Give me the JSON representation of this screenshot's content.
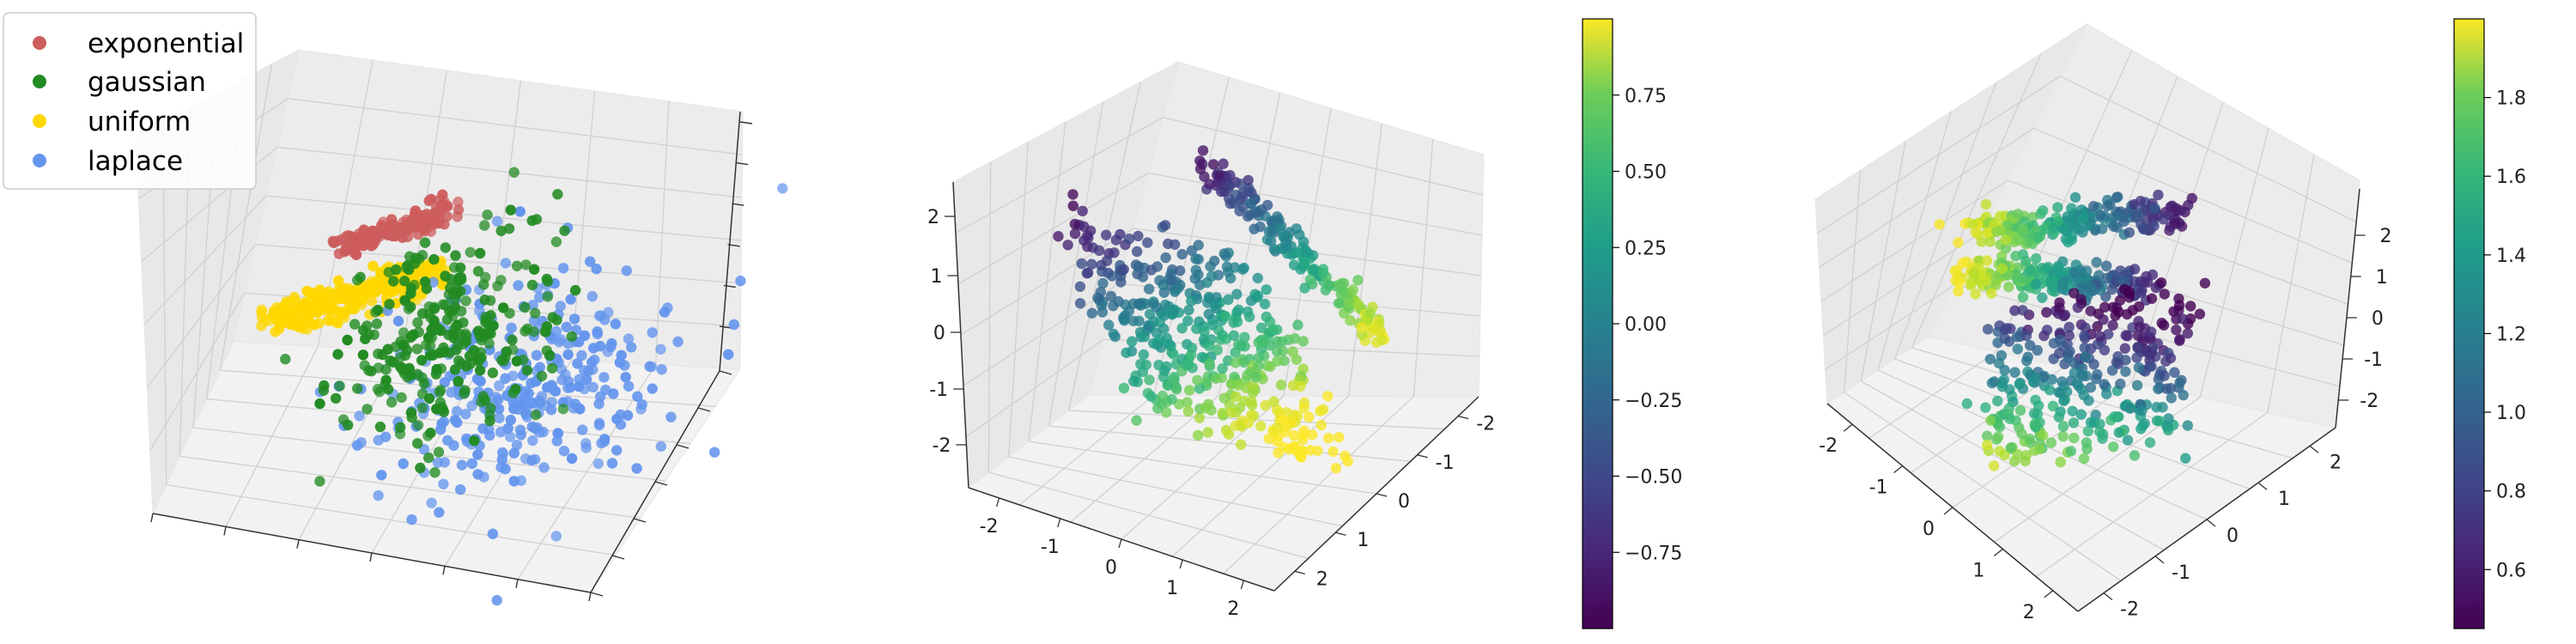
{
  "chart_data": [
    {
      "type": "scatter3d",
      "title": "",
      "axes_tick_labels_visible": false,
      "grid": true,
      "legend_position": "top-left",
      "series": [
        {
          "name": "exponential",
          "color": "#cd5c5c",
          "shape": "elongated cluster, high z"
        },
        {
          "name": "gaussian",
          "color": "#228b22",
          "shape": "round cluster, middle"
        },
        {
          "name": "uniform",
          "color": "#ffd700",
          "shape": "elongated band, left"
        },
        {
          "name": "laplace",
          "color": "#6495ed",
          "shape": "spread cluster, front-right"
        }
      ]
    },
    {
      "type": "scatter3d",
      "title": "",
      "grid": true,
      "colormap": "viridis",
      "xticks": [
        "-2",
        "-1",
        "0",
        "1",
        "2"
      ],
      "yticks": [
        "-2",
        "-1",
        "0",
        "1",
        "2"
      ],
      "zticks": [
        "-2",
        "-1",
        "0",
        "1",
        "2"
      ],
      "colorbar": {
        "range": [
          -1,
          1
        ],
        "ticks": [
          "0.75",
          "0.50",
          "0.25",
          "0.00",
          "−0.25",
          "−0.50",
          "−0.75"
        ]
      }
    },
    {
      "type": "scatter3d",
      "title": "",
      "grid": true,
      "colormap": "viridis",
      "xticks": [
        "-2",
        "-1",
        "0",
        "1",
        "2"
      ],
      "yticks": [
        "-2",
        "-1",
        "0",
        "1",
        "2"
      ],
      "zticks": [
        "-2",
        "-1",
        "0",
        "1",
        "2"
      ],
      "colorbar": {
        "range": [
          0.45,
          2.0
        ],
        "ticks": [
          "1.8",
          "1.6",
          "1.4",
          "1.2",
          "1.0",
          "0.8",
          "0.6"
        ]
      }
    }
  ],
  "legend": {
    "items": [
      {
        "label": "exponential",
        "color": "#cd5c5c"
      },
      {
        "label": "gaussian",
        "color": "#228b22"
      },
      {
        "label": "uniform",
        "color": "#ffd700"
      },
      {
        "label": "laplace",
        "color": "#6495ed"
      }
    ]
  }
}
